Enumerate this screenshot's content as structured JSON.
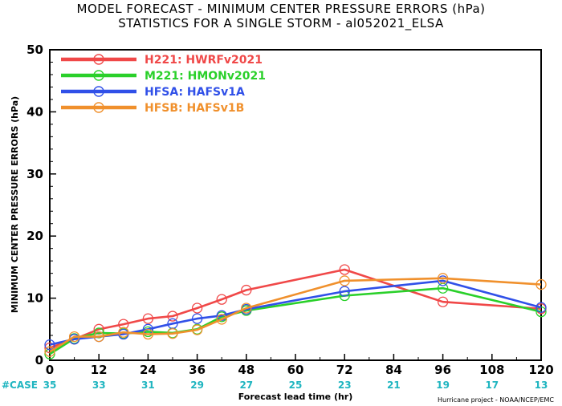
{
  "chart_data": {
    "type": "line",
    "title": "MODEL FORECAST - MINIMUM CENTER PRESSURE ERRORS (hPa)",
    "subtitle": "STATISTICS FOR A SINGLE STORM - al052021_ELSA",
    "xlabel": "Forecast lead time (hr)",
    "ylabel": "MINIMUM CENTER PRESSURE ERRORS (hPa)",
    "xlim": [
      0,
      120
    ],
    "ylim": [
      0,
      50
    ],
    "x_ticks": [
      0,
      12,
      24,
      36,
      48,
      60,
      72,
      84,
      96,
      108,
      120
    ],
    "y_ticks": [
      0,
      10,
      20,
      30,
      40,
      50
    ],
    "legend_position": "top-left",
    "series": [
      {
        "name": "H221: HWRFv2021",
        "color": "#f04848",
        "x": [
          0,
          6,
          12,
          18,
          24,
          30,
          36,
          42,
          48,
          72,
          96,
          120
        ],
        "y": [
          2.0,
          3.4,
          5.0,
          5.8,
          6.7,
          7.1,
          8.4,
          9.8,
          11.3,
          14.6,
          9.4,
          8.3
        ]
      },
      {
        "name": "M221: HMONv2021",
        "color": "#2ad02a",
        "x": [
          0,
          6,
          12,
          18,
          24,
          30,
          36,
          42,
          48,
          72,
          96,
          120
        ],
        "y": [
          1.0,
          3.5,
          4.4,
          4.3,
          4.6,
          4.4,
          5.0,
          7.0,
          8.0,
          10.4,
          11.6,
          7.8
        ]
      },
      {
        "name": "HFSA: HAFSv1A",
        "color": "#3050e8",
        "x": [
          0,
          6,
          12,
          18,
          24,
          30,
          36,
          42,
          48,
          72,
          96,
          120
        ],
        "y": [
          2.5,
          3.4,
          3.8,
          4.2,
          5.0,
          5.9,
          6.7,
          7.2,
          8.2,
          11.1,
          12.8,
          8.5
        ]
      },
      {
        "name": "HFSB: HAFSv1B",
        "color": "#f0902c",
        "x": [
          0,
          6,
          12,
          18,
          24,
          30,
          36,
          42,
          48,
          72,
          96,
          120
        ],
        "y": [
          1.4,
          3.8,
          3.8,
          4.5,
          4.2,
          4.3,
          4.9,
          6.6,
          8.4,
          12.8,
          13.2,
          12.2
        ]
      }
    ],
    "case_label": "#CASE",
    "case_counts": [
      {
        "x": 0,
        "n": "35"
      },
      {
        "x": 12,
        "n": "33"
      },
      {
        "x": 24,
        "n": "31"
      },
      {
        "x": 36,
        "n": "29"
      },
      {
        "x": 48,
        "n": "27"
      },
      {
        "x": 60,
        "n": "25"
      },
      {
        "x": 72,
        "n": "23"
      },
      {
        "x": 84,
        "n": "21"
      },
      {
        "x": 96,
        "n": "19"
      },
      {
        "x": 108,
        "n": "17"
      },
      {
        "x": 120,
        "n": "13"
      }
    ],
    "credit": "Hurricane project - NOAA/NCEP/EMC"
  }
}
